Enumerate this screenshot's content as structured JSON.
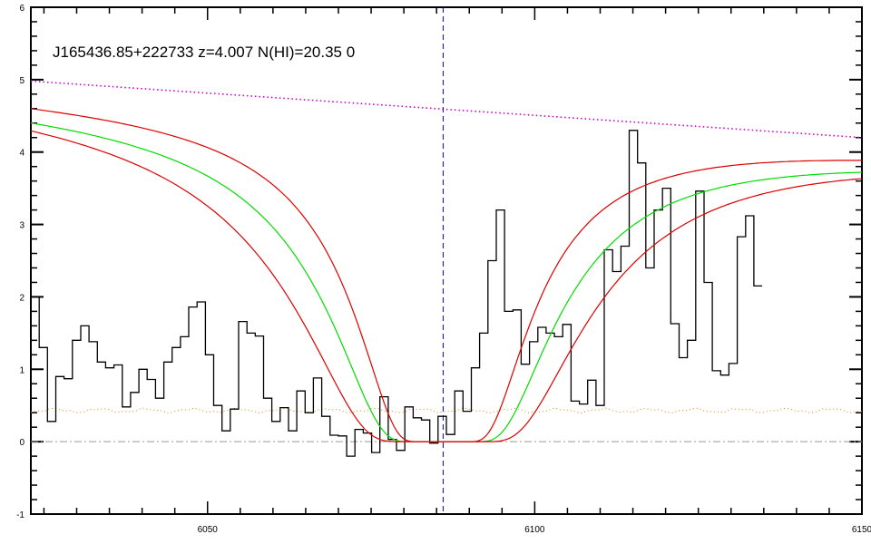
{
  "chart_data": {
    "type": "line",
    "title": "J165436.85+222733 z=4.007 N(HI)=20.35 0",
    "xlabel": "",
    "ylabel": "",
    "xlim": [
      6023,
      6150
    ],
    "ylim": [
      -1,
      6
    ],
    "x_ticks": [
      "6050",
      "6100",
      "6150"
    ],
    "y_ticks": [
      "-1",
      "0",
      "1",
      "2",
      "3",
      "4",
      "5",
      "6"
    ],
    "grid": false,
    "absorber_center": 6086,
    "zero_line": 0,
    "flux_steps": {
      "x_start": 6023,
      "step": 1.27,
      "values": [
        2.0,
        1.3,
        0.28,
        0.9,
        0.87,
        1.4,
        1.6,
        1.38,
        1.1,
        1.02,
        1.06,
        0.48,
        0.68,
        1.0,
        0.86,
        0.6,
        1.1,
        1.3,
        1.45,
        1.86,
        1.93,
        1.2,
        0.5,
        0.15,
        0.45,
        1.66,
        1.5,
        1.46,
        0.6,
        0.28,
        0.47,
        0.15,
        0.7,
        0.4,
        0.88,
        0.35,
        0.09,
        0.08,
        -0.2,
        0.17,
        0.12,
        -0.15,
        0.62,
        0.03,
        -0.12,
        0.48,
        0.33,
        0.3,
        -0.02,
        0.35,
        0.1,
        0.7,
        0.42,
        1.02,
        1.5,
        2.5,
        3.2,
        1.8,
        1.82,
        1.07,
        1.38,
        1.58,
        1.5,
        1.45,
        1.62,
        0.56,
        0.52,
        0.85,
        0.5,
        2.65,
        2.35,
        2.7,
        4.3,
        3.85,
        2.4,
        3.2,
        3.5,
        1.63,
        1.16,
        1.4,
        3.46,
        2.2,
        0.98,
        0.92,
        1.08,
        2.83,
        3.12,
        2.15
      ]
    },
    "series": [
      {
        "color": "#00dd00",
        "style": "solid",
        "model": "best-fit"
      },
      {
        "color": "#dd0000",
        "style": "solid",
        "model": "upper-bound"
      },
      {
        "color": "#dd0000",
        "style": "solid",
        "model": "lower-bound"
      }
    ],
    "continuum": {
      "color": "#cc00cc",
      "style": "dotted",
      "x": [
        6023,
        6150
      ],
      "y": [
        4.98,
        4.2
      ]
    },
    "error": {
      "color": "#dd8800",
      "style": "dotted",
      "value": 0.43
    },
    "colors": {
      "flux": "#000000",
      "center_line": "#0000cc",
      "zero_line": "#999999"
    }
  }
}
